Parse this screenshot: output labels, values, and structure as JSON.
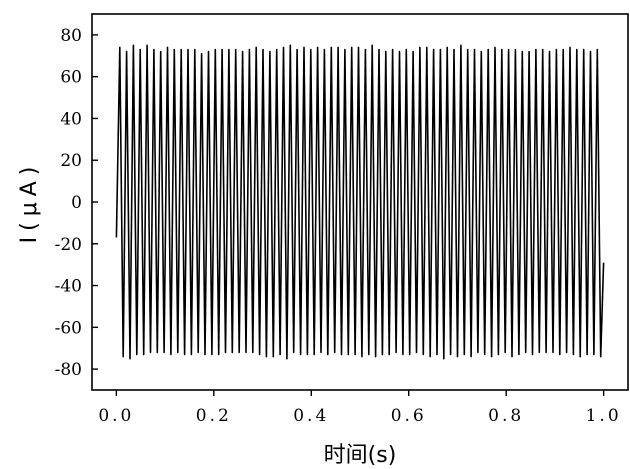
{
  "chart_data": {
    "type": "line",
    "title": "",
    "xlabel": "时间(s)",
    "ylabel": "I(μA)",
    "xlim": [
      -0.05,
      1.05
    ],
    "ylim": [
      -90,
      90
    ],
    "x_ticks": [
      0.0,
      0.2,
      0.4,
      0.6,
      0.8,
      1.0
    ],
    "x_tick_labels": [
      "0.0",
      "0.2",
      "0.4",
      "0.6",
      "0.8",
      "1.0"
    ],
    "y_ticks": [
      80,
      60,
      40,
      20,
      0,
      -20,
      -40,
      -60,
      -80
    ],
    "y_tick_labels": [
      "80",
      "60",
      "40",
      "20",
      "0",
      "-20",
      "-40",
      "-60",
      "-80"
    ],
    "grid": false,
    "legend": "none",
    "line_color": "#000000",
    "series": [
      {
        "x": [
          0.0,
          0.007,
          0.014,
          0.021,
          0.028,
          0.035,
          0.042,
          0.049,
          0.056,
          0.063,
          0.07,
          0.077,
          0.084,
          0.091,
          0.098,
          0.105,
          0.112,
          0.119,
          0.126,
          0.133,
          0.14,
          0.147,
          0.154,
          0.161,
          0.168,
          0.175,
          0.182,
          0.189,
          0.196,
          0.203,
          0.21,
          0.217,
          0.224,
          0.231,
          0.238,
          0.245,
          0.252,
          0.259,
          0.266,
          0.273,
          0.28,
          0.287,
          0.294,
          0.301,
          0.308,
          0.315,
          0.322,
          0.329,
          0.336,
          0.343,
          0.35,
          0.357,
          0.364,
          0.371,
          0.378,
          0.385,
          0.392,
          0.399,
          0.406,
          0.413,
          0.42,
          0.427,
          0.434,
          0.441,
          0.448,
          0.455,
          0.462,
          0.469,
          0.476,
          0.483,
          0.49,
          0.497,
          0.504,
          0.511,
          0.518,
          0.525,
          0.532,
          0.539,
          0.546,
          0.553,
          0.56,
          0.567,
          0.574,
          0.581,
          0.588,
          0.595,
          0.602,
          0.609,
          0.616,
          0.623,
          0.63,
          0.637,
          0.644,
          0.651,
          0.658,
          0.665,
          0.672,
          0.679,
          0.686,
          0.693,
          0.7,
          0.707,
          0.714,
          0.721,
          0.728,
          0.735,
          0.742,
          0.749,
          0.756,
          0.763,
          0.77,
          0.777,
          0.784,
          0.791,
          0.798,
          0.805,
          0.812,
          0.819,
          0.826,
          0.833,
          0.84,
          0.847,
          0.854,
          0.861,
          0.868,
          0.875,
          0.882,
          0.889,
          0.896,
          0.903,
          0.91,
          0.917,
          0.924,
          0.931,
          0.938,
          0.945,
          0.952,
          0.959,
          0.966,
          0.973,
          0.98,
          0.987,
          0.994,
          1.0
        ],
        "y": [
          -17,
          74,
          -74,
          72,
          -75,
          75,
          -73,
          73,
          -73,
          75,
          -72,
          73,
          -72,
          72,
          -72,
          74,
          -73,
          73,
          -72,
          73,
          -73,
          73,
          -73,
          73,
          -72,
          71,
          -73,
          72,
          -73,
          73,
          -73,
          73,
          -72,
          73,
          -72,
          73,
          -72,
          72,
          -72,
          73,
          -72,
          74,
          -73,
          73,
          -74,
          72,
          -74,
          73,
          -73,
          74,
          -75,
          75,
          -72,
          73,
          -73,
          74,
          -73,
          73,
          -73,
          74,
          -72,
          73,
          -73,
          74,
          -72,
          74,
          -73,
          73,
          -73,
          74,
          -73,
          74,
          -74,
          73,
          -73,
          75,
          -74,
          73,
          -73,
          72,
          -73,
          73,
          -72,
          72,
          -73,
          73,
          -73,
          72,
          -72,
          74,
          -73,
          74,
          -74,
          73,
          -73,
          73,
          -75,
          74,
          -73,
          73,
          -74,
          75,
          -73,
          73,
          -74,
          73,
          -72,
          72,
          -73,
          73,
          -74,
          74,
          -73,
          73,
          -72,
          73,
          -74,
          73,
          -73,
          72,
          -72,
          72,
          -73,
          73,
          -72,
          73,
          -72,
          72,
          -72,
          73,
          -73,
          73,
          -72,
          74,
          -73,
          73,
          -74,
          73,
          -73,
          72,
          -73,
          73,
          -74,
          -29
        ]
      }
    ]
  }
}
